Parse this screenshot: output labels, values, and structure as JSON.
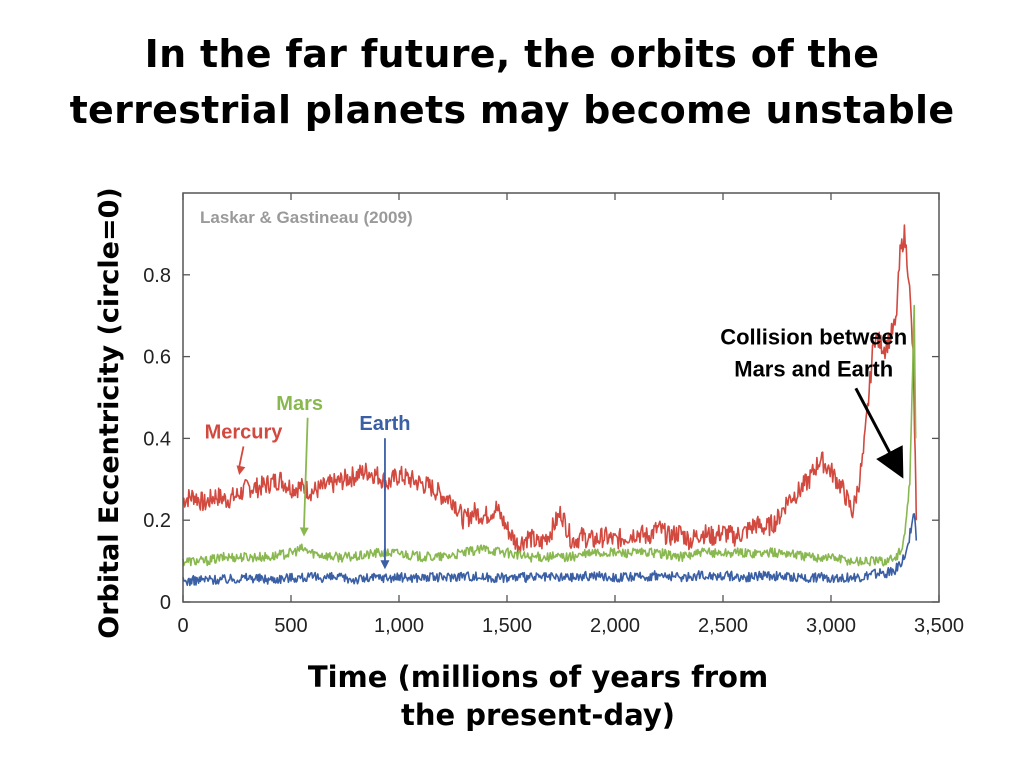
{
  "title": {
    "line1": "In the far future, the orbits of the",
    "line2": "terrestrial planets may become unstable"
  },
  "chart_data": {
    "type": "line",
    "source_label": "Laskar & Gastineau (2009)",
    "ylabel": "Orbital Eccentricity (circle=0)",
    "xlabel_line1": "Time (millions of years from",
    "xlabel_line2": "the present-day)",
    "xlim": [
      0,
      3500
    ],
    "ylim": [
      0,
      1.0
    ],
    "x_ticks": [
      0,
      500,
      1000,
      1500,
      2000,
      2500,
      3000,
      3500
    ],
    "x_tick_labels": [
      "0",
      "500",
      "1,000",
      "1,500",
      "2,000",
      "2,500",
      "3,000",
      "3,500"
    ],
    "y_ticks": [
      0,
      0.2,
      0.4,
      0.6,
      0.8
    ],
    "y_tick_labels": [
      "0",
      "0.2",
      "0.4",
      "0.6",
      "0.8"
    ],
    "grid": false,
    "series": [
      {
        "name": "Mercury",
        "color": "#d2493f",
        "label_pos": [
          280,
          0.4
        ],
        "arrow_to": [
          260,
          0.31
        ],
        "points": [
          [
            0,
            0.25
          ],
          [
            50,
            0.26
          ],
          [
            100,
            0.24
          ],
          [
            150,
            0.26
          ],
          [
            200,
            0.25
          ],
          [
            250,
            0.26
          ],
          [
            300,
            0.28
          ],
          [
            350,
            0.28
          ],
          [
            400,
            0.29
          ],
          [
            450,
            0.3
          ],
          [
            500,
            0.28
          ],
          [
            550,
            0.28
          ],
          [
            600,
            0.27
          ],
          [
            650,
            0.28
          ],
          [
            700,
            0.29
          ],
          [
            750,
            0.3
          ],
          [
            800,
            0.31
          ],
          [
            850,
            0.32
          ],
          [
            900,
            0.31
          ],
          [
            950,
            0.29
          ],
          [
            1000,
            0.31
          ],
          [
            1050,
            0.3
          ],
          [
            1100,
            0.29
          ],
          [
            1150,
            0.28
          ],
          [
            1200,
            0.26
          ],
          [
            1250,
            0.25
          ],
          [
            1300,
            0.2
          ],
          [
            1350,
            0.22
          ],
          [
            1400,
            0.21
          ],
          [
            1450,
            0.23
          ],
          [
            1500,
            0.18
          ],
          [
            1550,
            0.14
          ],
          [
            1600,
            0.16
          ],
          [
            1650,
            0.14
          ],
          [
            1700,
            0.17
          ],
          [
            1750,
            0.22
          ],
          [
            1800,
            0.15
          ],
          [
            1850,
            0.16
          ],
          [
            1900,
            0.15
          ],
          [
            1950,
            0.16
          ],
          [
            2000,
            0.15
          ],
          [
            2050,
            0.16
          ],
          [
            2100,
            0.17
          ],
          [
            2150,
            0.16
          ],
          [
            2200,
            0.18
          ],
          [
            2250,
            0.16
          ],
          [
            2300,
            0.17
          ],
          [
            2350,
            0.15
          ],
          [
            2400,
            0.17
          ],
          [
            2450,
            0.16
          ],
          [
            2500,
            0.17
          ],
          [
            2550,
            0.16
          ],
          [
            2600,
            0.17
          ],
          [
            2650,
            0.19
          ],
          [
            2700,
            0.18
          ],
          [
            2750,
            0.2
          ],
          [
            2800,
            0.25
          ],
          [
            2850,
            0.27
          ],
          [
            2900,
            0.3
          ],
          [
            2950,
            0.35
          ],
          [
            3000,
            0.32
          ],
          [
            3050,
            0.28
          ],
          [
            3100,
            0.22
          ],
          [
            3125,
            0.28
          ],
          [
            3150,
            0.36
          ],
          [
            3200,
            0.65
          ],
          [
            3250,
            0.62
          ],
          [
            3300,
            0.68
          ],
          [
            3320,
            0.85
          ],
          [
            3340,
            0.9
          ],
          [
            3360,
            0.8
          ],
          [
            3380,
            0.6
          ],
          [
            3390,
            0.35
          ],
          [
            3395,
            0.2
          ]
        ]
      },
      {
        "name": "Mars",
        "color": "#8ab850",
        "label_pos": [
          540,
          0.47
        ],
        "arrow_to": [
          560,
          0.16
        ],
        "points": [
          [
            0,
            0.1
          ],
          [
            100,
            0.1
          ],
          [
            200,
            0.11
          ],
          [
            300,
            0.11
          ],
          [
            400,
            0.11
          ],
          [
            500,
            0.12
          ],
          [
            550,
            0.13
          ],
          [
            600,
            0.12
          ],
          [
            700,
            0.11
          ],
          [
            800,
            0.11
          ],
          [
            900,
            0.12
          ],
          [
            1000,
            0.12
          ],
          [
            1100,
            0.11
          ],
          [
            1200,
            0.11
          ],
          [
            1300,
            0.12
          ],
          [
            1400,
            0.13
          ],
          [
            1500,
            0.12
          ],
          [
            1600,
            0.11
          ],
          [
            1700,
            0.11
          ],
          [
            1800,
            0.11
          ],
          [
            1900,
            0.12
          ],
          [
            2000,
            0.12
          ],
          [
            2100,
            0.12
          ],
          [
            2200,
            0.12
          ],
          [
            2300,
            0.11
          ],
          [
            2400,
            0.12
          ],
          [
            2500,
            0.12
          ],
          [
            2600,
            0.12
          ],
          [
            2700,
            0.12
          ],
          [
            2800,
            0.12
          ],
          [
            2900,
            0.11
          ],
          [
            3000,
            0.11
          ],
          [
            3100,
            0.1
          ],
          [
            3200,
            0.1
          ],
          [
            3250,
            0.1
          ],
          [
            3300,
            0.11
          ],
          [
            3330,
            0.13
          ],
          [
            3350,
            0.2
          ],
          [
            3365,
            0.3
          ],
          [
            3375,
            0.5
          ],
          [
            3385,
            0.72
          ],
          [
            3392,
            0.4
          ]
        ]
      },
      {
        "name": "Earth",
        "color": "#3a5fa5",
        "label_pos": [
          935,
          0.42
        ],
        "arrow_to": [
          935,
          0.08
        ],
        "points": [
          [
            0,
            0.05
          ],
          [
            100,
            0.055
          ],
          [
            200,
            0.055
          ],
          [
            300,
            0.06
          ],
          [
            400,
            0.055
          ],
          [
            500,
            0.06
          ],
          [
            600,
            0.06
          ],
          [
            700,
            0.06
          ],
          [
            800,
            0.055
          ],
          [
            900,
            0.06
          ],
          [
            1000,
            0.06
          ],
          [
            1100,
            0.06
          ],
          [
            1200,
            0.06
          ],
          [
            1300,
            0.065
          ],
          [
            1400,
            0.06
          ],
          [
            1500,
            0.06
          ],
          [
            1600,
            0.06
          ],
          [
            1700,
            0.06
          ],
          [
            1800,
            0.06
          ],
          [
            1900,
            0.065
          ],
          [
            2000,
            0.06
          ],
          [
            2100,
            0.06
          ],
          [
            2200,
            0.065
          ],
          [
            2300,
            0.06
          ],
          [
            2400,
            0.065
          ],
          [
            2500,
            0.065
          ],
          [
            2600,
            0.06
          ],
          [
            2700,
            0.065
          ],
          [
            2800,
            0.06
          ],
          [
            2900,
            0.06
          ],
          [
            3000,
            0.06
          ],
          [
            3100,
            0.06
          ],
          [
            3150,
            0.06
          ],
          [
            3200,
            0.07
          ],
          [
            3250,
            0.07
          ],
          [
            3300,
            0.08
          ],
          [
            3330,
            0.1
          ],
          [
            3350,
            0.12
          ],
          [
            3370,
            0.18
          ],
          [
            3385,
            0.22
          ],
          [
            3395,
            0.15
          ]
        ]
      }
    ],
    "annotation": {
      "line1": "Collision between",
      "line2": "Mars and Earth",
      "text_pos": [
        2920,
        0.63
      ],
      "arrow_from": [
        2600,
        0.58
      ],
      "arrow_to": [
        3350,
        0.3
      ]
    }
  }
}
